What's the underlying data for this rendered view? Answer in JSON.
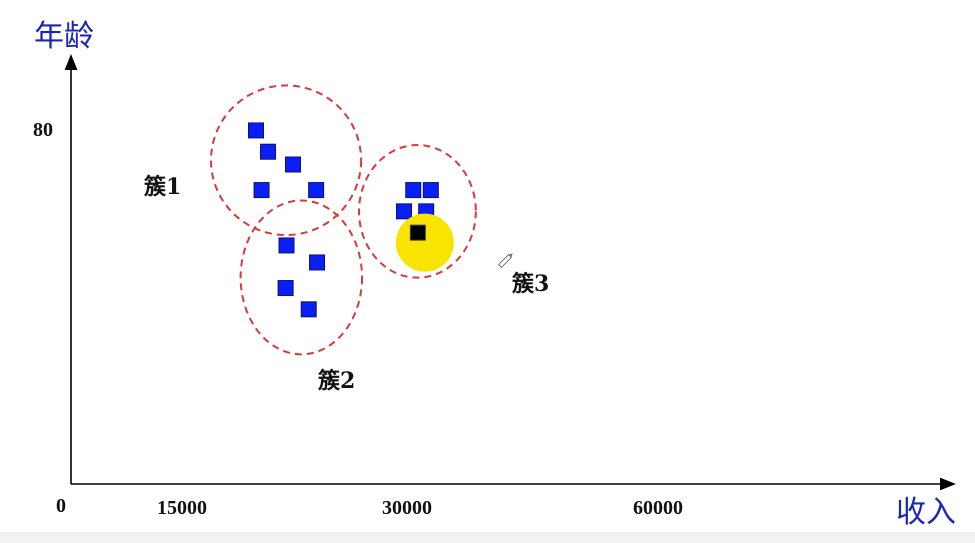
{
  "chart_data": {
    "type": "scatter",
    "xlabel": "收入",
    "ylabel": "年龄",
    "origin_label": "0",
    "x_ticks": [
      "15000",
      "30000",
      "60000"
    ],
    "y_ticks": [
      "80"
    ],
    "colors": {
      "axis_title": "#1b26b5",
      "point": "#0a1ff5",
      "point_border": "#0b1270",
      "cluster_outline": "#d63a3a",
      "highlight": "#f8e400",
      "selected_point": "#000000"
    },
    "clusters": [
      {
        "label": "簇1",
        "points": [
          [
            20000,
            83
          ],
          [
            21300,
            78
          ],
          [
            24000,
            75
          ],
          [
            20600,
            69
          ],
          [
            26500,
            69
          ]
        ]
      },
      {
        "label": "簇2",
        "points": [
          [
            23300,
            56
          ],
          [
            26600,
            52
          ],
          [
            23200,
            46
          ],
          [
            25700,
            41
          ]
        ]
      },
      {
        "label": "簇3",
        "points": [
          [
            37000,
            69
          ],
          [
            38900,
            69
          ],
          [
            36000,
            64
          ],
          [
            38400,
            64
          ]
        ],
        "highlighted_point": [
          37500,
          59
        ]
      }
    ]
  }
}
